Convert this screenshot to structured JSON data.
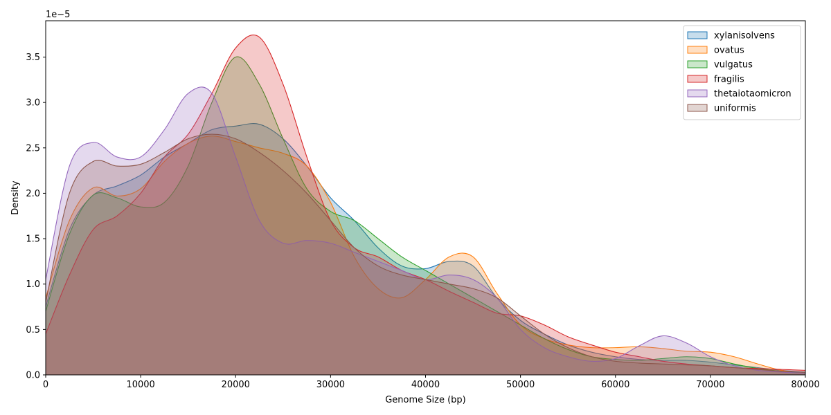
{
  "chart_data": {
    "type": "area",
    "title": "",
    "xlabel": "Genome Size (bp)",
    "ylabel": "Density",
    "y_offset_text": "1e−5",
    "xlim": [
      0,
      80000
    ],
    "ylim": [
      0,
      3.9
    ],
    "xticks": [
      0,
      10000,
      20000,
      30000,
      40000,
      50000,
      60000,
      70000,
      80000
    ],
    "xtick_labels": [
      "0",
      "10000",
      "20000",
      "30000",
      "40000",
      "50000",
      "60000",
      "70000",
      "80000"
    ],
    "yticks": [
      0.0,
      0.5,
      1.0,
      1.5,
      2.0,
      2.5,
      3.0,
      3.5
    ],
    "ytick_labels": [
      "0.0",
      "0.5",
      "1.0",
      "1.5",
      "2.0",
      "2.5",
      "3.0",
      "3.5"
    ],
    "grid": false,
    "legend_position": "top-right",
    "x": [
      0,
      2500,
      5000,
      7500,
      10000,
      12500,
      15000,
      17500,
      20000,
      22500,
      25000,
      27500,
      30000,
      32500,
      35000,
      37500,
      40000,
      42500,
      45000,
      47500,
      50000,
      52500,
      55000,
      57500,
      60000,
      62500,
      65000,
      67500,
      70000,
      72500,
      75000,
      77500,
      80000
    ],
    "series": [
      {
        "name": "xylanisolvens",
        "color": "#1f77b4",
        "values": [
          0.75,
          1.6,
          1.98,
          2.08,
          2.2,
          2.4,
          2.55,
          2.7,
          2.74,
          2.76,
          2.6,
          2.3,
          1.95,
          1.7,
          1.4,
          1.2,
          1.17,
          1.25,
          1.2,
          0.85,
          0.6,
          0.45,
          0.33,
          0.25,
          0.2,
          0.17,
          0.16,
          0.16,
          0.14,
          0.11,
          0.08,
          0.05,
          0.03
        ]
      },
      {
        "name": "ovatus",
        "color": "#ff7f0e",
        "values": [
          0.85,
          1.7,
          2.06,
          1.97,
          2.05,
          2.35,
          2.55,
          2.63,
          2.57,
          2.5,
          2.44,
          2.3,
          1.9,
          1.3,
          0.95,
          0.85,
          1.05,
          1.3,
          1.3,
          0.9,
          0.55,
          0.4,
          0.33,
          0.3,
          0.3,
          0.31,
          0.29,
          0.26,
          0.25,
          0.2,
          0.12,
          0.05,
          0.02
        ]
      },
      {
        "name": "vulgatus",
        "color": "#2ca02c",
        "values": [
          0.7,
          1.55,
          1.98,
          1.95,
          1.85,
          1.9,
          2.3,
          3.0,
          3.5,
          3.2,
          2.6,
          2.05,
          1.8,
          1.7,
          1.5,
          1.3,
          1.15,
          1.0,
          0.85,
          0.7,
          0.55,
          0.4,
          0.28,
          0.2,
          0.17,
          0.16,
          0.18,
          0.2,
          0.18,
          0.12,
          0.07,
          0.04,
          0.02
        ]
      },
      {
        "name": "fragilis",
        "color": "#d62728",
        "values": [
          0.45,
          1.1,
          1.6,
          1.75,
          2.0,
          2.4,
          2.65,
          3.1,
          3.6,
          3.72,
          3.2,
          2.4,
          1.7,
          1.4,
          1.3,
          1.15,
          1.05,
          0.92,
          0.8,
          0.68,
          0.65,
          0.55,
          0.42,
          0.33,
          0.25,
          0.2,
          0.15,
          0.12,
          0.1,
          0.08,
          0.07,
          0.06,
          0.05
        ]
      },
      {
        "name": "thetaiotaomicron",
        "color": "#9467bd",
        "values": [
          1.05,
          2.3,
          2.56,
          2.4,
          2.4,
          2.7,
          3.1,
          3.1,
          2.4,
          1.7,
          1.45,
          1.48,
          1.45,
          1.35,
          1.25,
          1.15,
          1.05,
          1.1,
          1.05,
          0.85,
          0.5,
          0.3,
          0.2,
          0.15,
          0.18,
          0.32,
          0.43,
          0.35,
          0.2,
          0.1,
          0.05,
          0.03,
          0.02
        ]
      },
      {
        "name": "uniformis",
        "color": "#8c564b",
        "values": [
          0.8,
          2.0,
          2.35,
          2.3,
          2.32,
          2.45,
          2.6,
          2.65,
          2.6,
          2.45,
          2.25,
          2.0,
          1.7,
          1.4,
          1.2,
          1.1,
          1.05,
          1.0,
          0.95,
          0.85,
          0.65,
          0.45,
          0.3,
          0.2,
          0.15,
          0.13,
          0.12,
          0.11,
          0.1,
          0.08,
          0.06,
          0.04,
          0.03
        ]
      }
    ]
  }
}
